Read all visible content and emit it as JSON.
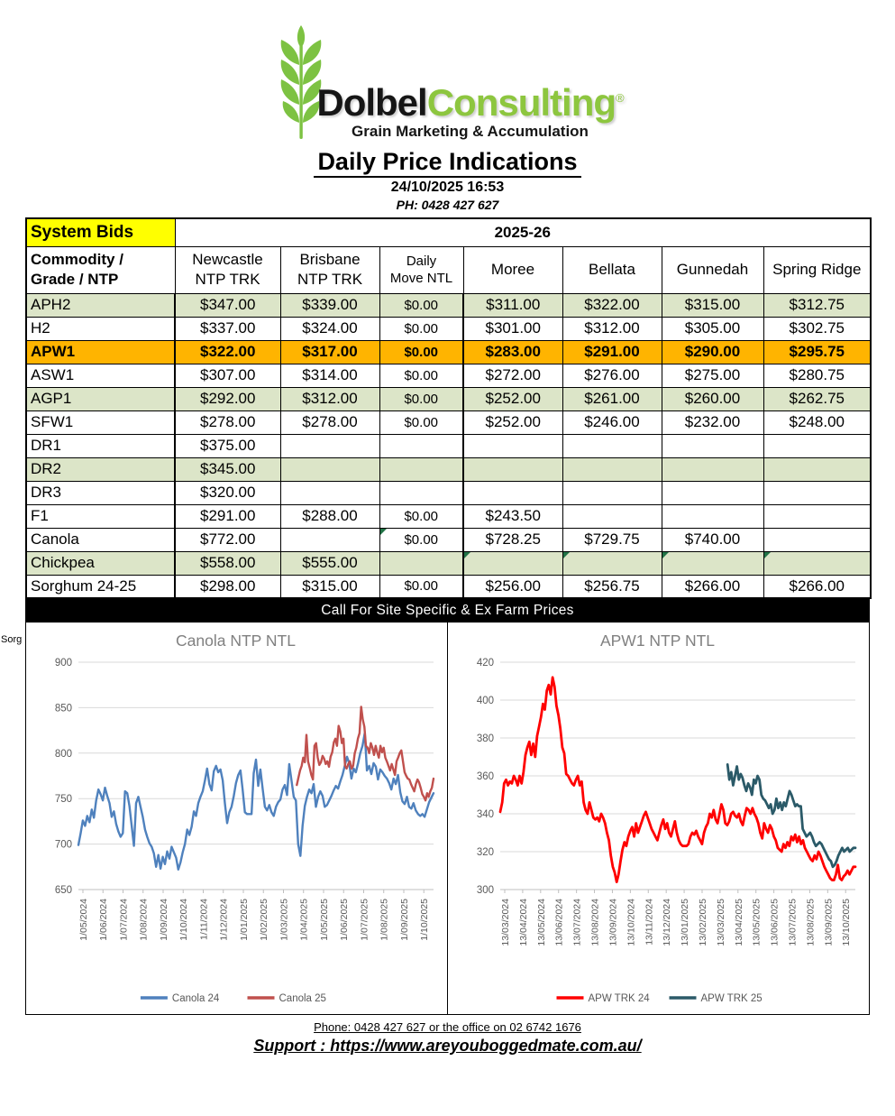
{
  "header": {
    "logo": {
      "brand_black": "Dolbel",
      "brand_green": "Consulting",
      "registered": "®",
      "tagline": "Grain Marketing & Accumulation"
    },
    "title": "Daily Price Indications",
    "datetime": "24/10/2025 16:53",
    "phone": "PH: 0428 427 627"
  },
  "table": {
    "corner_label": "System Bids",
    "season": "2025-26",
    "side_label": "Sorg",
    "columns": [
      {
        "line1": "Commodity /",
        "line2": "Grade / NTP"
      },
      {
        "line1": "Newcastle",
        "line2": "NTP TRK"
      },
      {
        "line1": "Brisbane",
        "line2": "NTP TRK"
      },
      {
        "line1": "Daily",
        "line2": "Move NTL"
      },
      {
        "line1": "Moree",
        "line2": ""
      },
      {
        "line1": "Bellata",
        "line2": ""
      },
      {
        "line1": "Gunnedah",
        "line2": ""
      },
      {
        "line1": "Spring Ridge",
        "line2": ""
      }
    ],
    "rows": [
      {
        "commodity": "APH2",
        "highlight": "green",
        "values": [
          "$347.00",
          "$339.00",
          "$0.00",
          "$311.00",
          "$322.00",
          "$315.00",
          "$312.75"
        ]
      },
      {
        "commodity": "H2",
        "highlight": "white",
        "values": [
          "$337.00",
          "$324.00",
          "$0.00",
          "$301.00",
          "$312.00",
          "$305.00",
          "$302.75"
        ]
      },
      {
        "commodity": "APW1",
        "highlight": "orange",
        "values": [
          "$322.00",
          "$317.00",
          "$0.00",
          "$283.00",
          "$291.00",
          "$290.00",
          "$295.75"
        ]
      },
      {
        "commodity": "ASW1",
        "highlight": "white",
        "values": [
          "$307.00",
          "$314.00",
          "$0.00",
          "$272.00",
          "$276.00",
          "$275.00",
          "$280.75"
        ]
      },
      {
        "commodity": "AGP1",
        "highlight": "green",
        "values": [
          "$292.00",
          "$312.00",
          "$0.00",
          "$252.00",
          "$261.00",
          "$260.00",
          "$262.75"
        ]
      },
      {
        "commodity": "SFW1",
        "highlight": "white",
        "group_end": true,
        "values": [
          "$278.00",
          "$278.00",
          "$0.00",
          "$252.00",
          "$246.00",
          "$232.00",
          "$248.00"
        ]
      },
      {
        "commodity": "DR1",
        "highlight": "white",
        "values": [
          "$375.00",
          "",
          "",
          "",
          "",
          "",
          ""
        ]
      },
      {
        "commodity": "DR2",
        "highlight": "green",
        "values": [
          "$345.00",
          "",
          "",
          "",
          "",
          "",
          ""
        ]
      },
      {
        "commodity": "DR3",
        "highlight": "white",
        "group_end": true,
        "values": [
          "$320.00",
          "",
          "",
          "",
          "",
          "",
          ""
        ]
      },
      {
        "commodity": "F1",
        "highlight": "white",
        "group_end": true,
        "values": [
          "$291.00",
          "$288.00",
          "$0.00",
          "$243.50",
          "",
          "",
          ""
        ]
      },
      {
        "commodity": "Canola",
        "highlight": "white",
        "flags": [
          2
        ],
        "values": [
          "$772.00",
          "",
          "$0.00",
          "$728.25",
          "$729.75",
          "$740.00",
          ""
        ]
      },
      {
        "commodity": "Chickpea",
        "highlight": "green",
        "group_end": true,
        "flags": [
          3,
          4,
          5,
          6
        ],
        "values": [
          "$558.00",
          "$555.00",
          "",
          "",
          "",
          "",
          ""
        ]
      },
      {
        "commodity": "Sorghum 24-25",
        "highlight": "white",
        "values": [
          "$298.00",
          "$315.00",
          "$0.00",
          "$256.00",
          "$256.75",
          "$266.00",
          "$266.00"
        ]
      }
    ]
  },
  "banner": "Call For Site Specific & Ex Farm Prices",
  "footer": {
    "phone_line": "Phone: 0428 427 627 or the office on 02 6742 1676",
    "support_line": "Support : https://www.areyouboggedmate.com.au/"
  },
  "colors": {
    "row_green": "#dce5c8",
    "row_orange": "#ffb400",
    "corner_yellow": "#ffff00",
    "flag_green": "#217346",
    "logo_green": "#8dc63f",
    "canola24_blue": "#4f81bd",
    "canola25_red": "#c0504d",
    "apw24_red": "#ff0000",
    "apw25_teal": "#2b5a68"
  },
  "chart_data": [
    {
      "type": "line",
      "title": "Canola NTP NTL",
      "ylim": [
        650,
        900
      ],
      "yticks": [
        650,
        700,
        750,
        800,
        850,
        900
      ],
      "grid": true,
      "legend_position": "bottom",
      "xticklabels": [
        "1/05/2024",
        "1/06/2024",
        "1/07/2024",
        "1/08/2024",
        "1/09/2024",
        "1/10/2024",
        "1/11/2024",
        "1/12/2024",
        "1/01/2025",
        "1/02/2025",
        "1/03/2025",
        "1/04/2025",
        "1/05/2025",
        "1/06/2025",
        "1/07/2025",
        "1/08/2025",
        "1/09/2025",
        "1/10/2025"
      ],
      "series": [
        {
          "name": "Canola 24",
          "color": "#4f81bd",
          "width": 2.4,
          "start_frac": 0,
          "values": [
            699,
            712,
            726,
            720,
            731,
            724,
            738,
            729,
            748,
            760,
            755,
            748,
            762,
            753,
            745,
            730,
            736,
            722,
            714,
            708,
            712,
            758,
            756,
            742,
            720,
            698,
            745,
            752,
            741,
            730,
            716,
            708,
            701,
            697,
            690,
            675,
            688,
            673,
            686,
            678,
            692,
            684,
            697,
            691,
            685,
            672,
            680,
            691,
            700,
            716,
            710,
            719,
            736,
            731,
            745,
            752,
            758,
            770,
            783,
            766,
            759,
            780,
            786,
            779,
            782,
            770,
            745,
            723,
            735,
            741,
            753,
            767,
            776,
            781,
            760,
            735,
            733,
            733,
            733,
            778,
            793,
            764,
            782,
            761,
            741,
            737,
            743,
            735,
            731,
            741,
            746,
            749,
            760,
            765,
            754,
            788,
            770,
            752,
            748,
            700,
            687,
            720,
            742,
            752,
            760,
            756,
            766,
            741,
            752,
            758,
            753,
            741,
            743,
            748,
            753,
            759,
            764,
            761,
            769,
            776,
            786,
            796,
            789,
            772,
            783,
            779,
            789,
            800,
            808,
            822,
            781,
            786,
            777,
            789,
            785,
            771,
            782,
            779,
            775,
            772,
            767,
            760,
            772,
            766,
            776,
            757,
            747,
            744,
            752,
            741,
            739,
            745,
            737,
            733,
            731,
            733,
            730,
            738,
            746,
            751,
            756
          ]
        },
        {
          "name": "Canola 25",
          "color": "#c0504d",
          "width": 2.4,
          "start_frac": 0.615,
          "values": [
            765,
            773,
            781,
            786,
            795,
            790,
            820,
            791,
            784,
            776,
            771,
            808,
            811,
            795,
            787,
            790,
            797,
            794,
            788,
            791,
            785,
            796,
            801,
            812,
            816,
            808,
            830,
            824,
            811,
            816,
            786,
            783,
            788,
            791,
            783,
            786,
            800,
            806,
            816,
            822,
            851,
            837,
            829,
            808,
            806,
            800,
            811,
            806,
            798,
            808,
            801,
            795,
            808,
            801,
            806,
            795,
            791,
            786,
            781,
            788,
            782,
            776,
            791,
            795,
            800,
            803,
            791,
            779,
            775,
            772,
            771,
            766,
            762,
            758,
            766,
            771,
            768,
            762,
            755,
            752,
            748,
            756,
            752,
            758,
            762,
            772
          ]
        }
      ]
    },
    {
      "type": "line",
      "title": "APW1 NTP NTL",
      "ylim": [
        300,
        420
      ],
      "yticks": [
        300,
        320,
        340,
        360,
        380,
        400,
        420
      ],
      "grid": true,
      "legend_position": "bottom",
      "xticklabels": [
        "13/03/2024",
        "13/04/2024",
        "13/05/2024",
        "13/06/2024",
        "13/07/2024",
        "13/08/2024",
        "13/09/2024",
        "13/10/2024",
        "13/11/2024",
        "13/12/2024",
        "13/01/2025",
        "13/02/2025",
        "13/03/2025",
        "13/04/2025",
        "13/05/2025",
        "13/06/2025",
        "13/07/2025",
        "13/08/2025",
        "13/09/2025",
        "13/10/2025"
      ],
      "series": [
        {
          "name": "APW TRK 24",
          "color": "#ff0000",
          "width": 2.8,
          "start_frac": 0,
          "values": [
            341,
            346,
            356,
            358,
            355,
            357,
            356,
            360,
            358,
            355,
            360,
            356,
            362,
            371,
            375,
            378,
            371,
            377,
            370,
            381,
            386,
            391,
            398,
            395,
            405,
            408,
            403,
            412,
            407,
            397,
            392,
            385,
            375,
            372,
            361,
            360,
            358,
            356,
            355,
            358,
            360,
            355,
            357,
            346,
            342,
            340,
            346,
            342,
            338,
            337,
            338,
            336,
            340,
            338,
            335,
            330,
            326,
            318,
            312,
            309,
            304,
            308,
            315,
            321,
            325,
            323,
            328,
            331,
            333,
            328,
            335,
            330,
            333,
            336,
            339,
            341,
            338,
            335,
            332,
            330,
            328,
            326,
            330,
            334,
            337,
            332,
            335,
            330,
            328,
            332,
            336,
            330,
            326,
            324,
            323,
            323,
            323,
            324,
            328,
            330,
            329,
            331,
            328,
            326,
            324,
            330,
            333,
            335,
            340,
            338,
            342,
            337,
            335,
            340,
            345,
            342,
            335,
            334,
            336,
            340,
            341,
            339,
            338,
            340,
            336,
            334,
            339,
            343,
            342,
            340,
            343,
            340,
            338,
            335,
            330,
            327,
            335,
            332,
            330,
            334,
            332,
            328,
            326,
            322,
            321,
            320,
            324,
            322,
            325,
            323,
            328,
            326,
            329,
            325,
            328,
            324,
            326,
            322,
            320,
            318,
            316,
            315,
            318,
            316,
            320,
            318,
            315,
            312,
            310,
            308,
            306,
            305,
            305,
            308,
            313,
            306,
            305,
            307,
            308,
            310,
            308,
            310,
            312,
            312
          ]
        },
        {
          "name": "APW TRK 25",
          "color": "#2b5a68",
          "width": 2.8,
          "start_frac": 0.64,
          "values": [
            366,
            358,
            362,
            355,
            360,
            365,
            358,
            361,
            359,
            355,
            352,
            356,
            354,
            350,
            358,
            356,
            360,
            358,
            350,
            348,
            347,
            345,
            343,
            345,
            340,
            342,
            348,
            343,
            346,
            342,
            346,
            344,
            348,
            352,
            350,
            347,
            344,
            345,
            344,
            344,
            332,
            330,
            328,
            329,
            330,
            328,
            325,
            323,
            324,
            325,
            324,
            322,
            320,
            318,
            316,
            315,
            312,
            313,
            315,
            318,
            320,
            322,
            320,
            321,
            322,
            320,
            321,
            322,
            322
          ]
        }
      ]
    }
  ]
}
